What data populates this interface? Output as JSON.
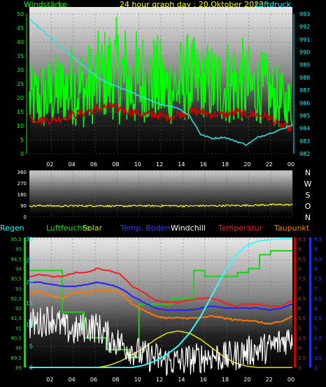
{
  "colors": {
    "bg": "#000000",
    "wind": "#00ff00",
    "wind_axis": "#00ff00",
    "pressure": "#33dddd",
    "pressure_axis": "#00ffff",
    "gust_band": "#cc0000",
    "direction": "#ffff00",
    "rain": "#33ffff",
    "humidity": "#22cc22",
    "solar": "#e8e800",
    "soil": "#2222ff",
    "windchill": "#ffffff",
    "temperature": "#ee2222",
    "dewpoint": "#ff7700",
    "grid": "#666666"
  },
  "chart_data": [
    {
      "type": "line",
      "title": "24 hour graph day : 20.Oktober 2023",
      "left_axis_label": "Windstärke",
      "right_axis_label": "Luftdruck",
      "x_ticks": [
        "02",
        "04",
        "06",
        "08",
        "10",
        "12",
        "14",
        "16",
        "18",
        "20",
        "22",
        "00"
      ],
      "left_ticks": [
        "0",
        "5",
        "10",
        "15",
        "20",
        "25",
        "30",
        "35",
        "40",
        "45",
        "50"
      ],
      "right_ticks": [
        "982",
        "983",
        "984",
        "985",
        "986",
        "987",
        "988",
        "989",
        "990",
        "991",
        "992",
        "993"
      ],
      "ylim_left": [
        0,
        50
      ],
      "ylim_right": [
        982,
        993
      ],
      "series": [
        {
          "name": "Windstärke",
          "axis": "left",
          "values_hourly_min": [
            9,
            8,
            10,
            11,
            10,
            9,
            12,
            13,
            10,
            9,
            11,
            12,
            10,
            11,
            12,
            13,
            12,
            11,
            10,
            12,
            11,
            10,
            9,
            9
          ],
          "values_hourly_max": [
            32,
            35,
            36,
            38,
            42,
            40,
            44,
            48,
            50,
            45,
            46,
            44,
            40,
            42,
            44,
            40,
            41,
            42,
            45,
            40,
            38,
            36,
            30,
            28
          ]
        },
        {
          "name": "Böen-Band",
          "axis": "left",
          "values": [
            13,
            12,
            12,
            13,
            14,
            15,
            16,
            17,
            16,
            15,
            14,
            14,
            13,
            14,
            15,
            15,
            14,
            14,
            15,
            14,
            14,
            13,
            10,
            9
          ]
        },
        {
          "name": "Luftdruck",
          "axis": "right",
          "values": [
            992.6,
            991.8,
            991.0,
            990.2,
            989.5,
            988.7,
            988.0,
            987.5,
            987.2,
            986.8,
            986.4,
            986.0,
            985.8,
            985.6,
            985.0,
            983.5,
            983.2,
            983.3,
            983.0,
            982.7,
            983.3,
            983.6,
            983.9,
            984.3
          ]
        }
      ]
    },
    {
      "type": "line",
      "title": "",
      "right_axis_labels": [
        "N",
        "W",
        "S",
        "O",
        "N"
      ],
      "left_ticks": [
        "0",
        "90",
        "180",
        "270",
        "360"
      ],
      "ylim": [
        0,
        360
      ],
      "x_ticks": [
        "02",
        "04",
        "06",
        "08",
        "10",
        "12",
        "14",
        "16",
        "18",
        "20",
        "22",
        "00"
      ],
      "series": [
        {
          "name": "Windrichtung",
          "values": [
            85,
            88,
            86,
            84,
            87,
            86,
            88,
            85,
            84,
            86,
            87,
            85,
            88,
            86,
            85,
            87,
            86,
            88,
            89,
            90,
            92,
            95,
            96,
            94
          ]
        }
      ]
    },
    {
      "type": "line",
      "title": "",
      "legend": [
        "Regen",
        "Luftfeuchte",
        "Solar",
        "Temp. Boden",
        "Windchill",
        "Temperatur",
        "Taupunkt"
      ],
      "x_ticks": [
        "02",
        "04",
        "06",
        "08",
        "10",
        "12",
        "14",
        "16",
        "18",
        "20",
        "22",
        "00"
      ],
      "axis_rain_ticks": [
        "0",
        "5",
        "10",
        "15",
        "20",
        "25",
        "30"
      ],
      "ylim_rain": [
        0,
        30
      ],
      "axis_humidity_ticks": [
        "89",
        "89,5",
        "90",
        "90,5",
        "91",
        "91,5",
        "92",
        "92,5",
        "93",
        "93,5",
        "94",
        "94,5",
        "95",
        "95,5"
      ],
      "ylim_humidity": [
        89,
        95.5
      ],
      "axis_temp_ticks": [
        "3",
        "3,5",
        "4",
        "4,5",
        "5",
        "5,5",
        "6",
        "6,5",
        "7",
        "7,5",
        "8",
        "8,5",
        "9",
        "9,5"
      ],
      "ylim_temp": [
        3,
        9.5
      ],
      "axis_dew_ticks": [
        "3",
        "3,5",
        "4",
        "4,5",
        "5",
        "5,5",
        "6",
        "6,5",
        "7",
        "7,5",
        "8",
        "8,5",
        "9",
        "9,5"
      ],
      "ylim_dew": [
        3,
        9.5
      ],
      "series": [
        {
          "name": "Regen",
          "axis": "rain",
          "values": [
            0,
            0,
            0,
            0,
            0,
            0,
            0,
            0,
            0,
            0,
            0.5,
            1.5,
            3,
            5,
            8,
            12,
            17,
            22,
            26,
            28.5,
            29.5,
            29.8,
            30,
            30
          ]
        },
        {
          "name": "Luftfeuchte",
          "axis": "humidity",
          "values": [
            93.9,
            93.9,
            93.9,
            91.8,
            91.8,
            90.5,
            90.5,
            89.9,
            89.9,
            89.5,
            92.2,
            92.2,
            92.2,
            92.5,
            92.5,
            93.9,
            93.6,
            93.6,
            93.6,
            93.8,
            94.0,
            94.7,
            94.9,
            94.9
          ]
        },
        {
          "name": "Solar",
          "axis": "rain",
          "values": [
            0,
            0,
            0,
            0,
            0,
            0,
            0,
            0.5,
            1.5,
            3,
            4.5,
            6.5,
            8,
            8.5,
            8,
            6.5,
            4.5,
            2.5,
            1,
            0.3,
            0,
            0,
            0,
            0
          ]
        },
        {
          "name": "Temp. Boden",
          "axis": "temp",
          "values": [
            7.3,
            7.3,
            7.2,
            7.1,
            7.1,
            7.2,
            7.3,
            7.2,
            7.0,
            6.6,
            6.3,
            6.0,
            5.9,
            5.9,
            5.9,
            6.0,
            6.1,
            6.0,
            6.0,
            6.0,
            6.0,
            5.9,
            6.0,
            6.2
          ]
        },
        {
          "name": "Windchill",
          "axis": "temp",
          "values": [
            5.2,
            5.3,
            5.5,
            5.0,
            4.8,
            5.1,
            5.0,
            4.5,
            4.2,
            3.9,
            3.6,
            3.5,
            3.3,
            3.3,
            3.4,
            3.5,
            3.6,
            3.5,
            3.6,
            3.8,
            3.9,
            4.0,
            4.3,
            4.6
          ]
        },
        {
          "name": "Temperatur",
          "axis": "temp",
          "values": [
            7.6,
            7.7,
            7.6,
            7.6,
            7.8,
            7.8,
            8.0,
            7.9,
            7.7,
            7.1,
            6.8,
            6.4,
            6.3,
            6.3,
            6.4,
            6.5,
            6.5,
            6.3,
            6.1,
            6.2,
            6.2,
            6.1,
            6.1,
            6.4
          ]
        },
        {
          "name": "Taupunkt",
          "axis": "temp",
          "values": [
            6.8,
            6.8,
            6.6,
            6.5,
            6.8,
            6.8,
            6.9,
            6.9,
            6.8,
            6.2,
            5.9,
            5.6,
            5.5,
            5.5,
            5.5,
            5.5,
            5.6,
            5.5,
            5.4,
            5.4,
            5.3,
            5.2,
            5.3,
            5.6
          ]
        }
      ]
    }
  ]
}
